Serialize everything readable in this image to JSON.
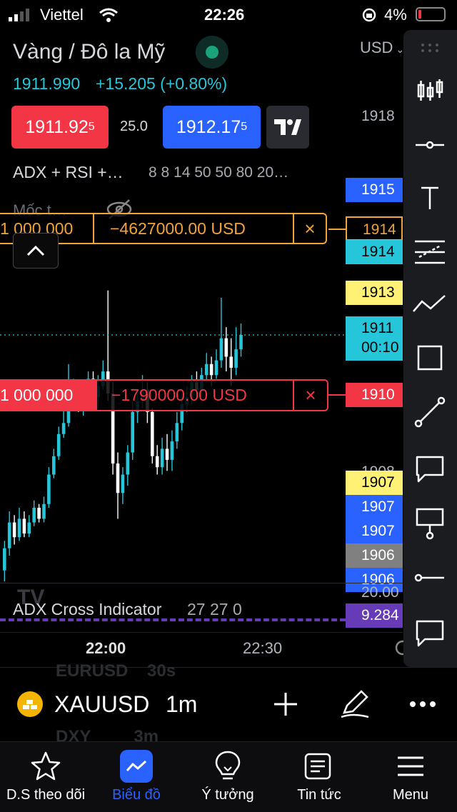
{
  "status": {
    "carrier": "Viettel",
    "time": "22:26",
    "battery": "4%"
  },
  "header": {
    "title": "Vàng / Đô la Mỹ",
    "price": "1911.990",
    "change": "+15.205 (+0.80%)",
    "sell_main": "1911.92",
    "sell_sup": "5",
    "spread": "25.0",
    "buy_main": "1912.17",
    "buy_sup": "5",
    "currency": "USD"
  },
  "indicator_row": {
    "name": "ADX + RSI +…",
    "params": "8 8 14 50 50 80 20…"
  },
  "legend": {
    "label": "Mốc t…"
  },
  "orders": [
    {
      "qty": "1 000 000",
      "pnl": "−4627000.00 USD",
      "close": "×",
      "color": "#f2a33a"
    },
    {
      "qty": "1 000 000",
      "pnl": "−1790000.00 USD",
      "close": "×",
      "color": "#f23645"
    }
  ],
  "price_tags": [
    {
      "text": "1918",
      "bg": "#000000",
      "fg": "#b2b5be"
    },
    {
      "text": "1915",
      "bg": "#2962ff",
      "fg": "#ffffff"
    },
    {
      "text": "1914",
      "bg": "#000000",
      "fg": "#f2a33a"
    },
    {
      "text": "1914",
      "bg": "#26c6da",
      "fg": "#000000"
    },
    {
      "text": "1913",
      "bg": "#fff176",
      "fg": "#000000"
    },
    {
      "text": "1911",
      "bg": "#26c6da",
      "fg": "#000000",
      "sub": "00:10"
    },
    {
      "text": "1910",
      "bg": "#f23645",
      "fg": "#ffffff"
    },
    {
      "text": "1908",
      "bg": "#000000",
      "fg": "#b2b5be"
    },
    {
      "text": "1907",
      "bg": "#fff176",
      "fg": "#000000"
    },
    {
      "text": "1907",
      "bg": "#2962ff",
      "fg": "#ffffff"
    },
    {
      "text": "1907",
      "bg": "#2962ff",
      "fg": "#ffffff"
    },
    {
      "text": "1906",
      "bg": "#808080",
      "fg": "#ffffff"
    },
    {
      "text": "1906",
      "bg": "#2962ff",
      "fg": "#ffffff"
    }
  ],
  "sub_indicator": {
    "name": "ADX Cross Indicator",
    "params": "27 27 0",
    "axis_top": "20.00",
    "value": "9.284"
  },
  "time_axis": {
    "t1": "22:00",
    "t2": "22:30"
  },
  "symbol_bar": {
    "symbol": "XAUUSD",
    "interval": "1m",
    "ghost_sym1": "EURUSD",
    "ghost_int1": "30s",
    "ghost_sym2": "DXY",
    "ghost_int2": "3m"
  },
  "nav": [
    {
      "label": "D.S theo dõi",
      "icon": "star-icon",
      "active": false
    },
    {
      "label": "Biểu đồ",
      "icon": "chart-icon",
      "active": true
    },
    {
      "label": "Ý tưởng",
      "icon": "lightbulb-icon",
      "active": false
    },
    {
      "label": "Tin tức",
      "icon": "news-icon",
      "active": false
    },
    {
      "label": "Menu",
      "icon": "menu-icon",
      "active": false
    }
  ],
  "colors": {
    "up": "#26c6da",
    "down": "#ffffff",
    "accent": "#2962ff",
    "sell": "#f23645",
    "arrow": "#f23645"
  },
  "toolbar": [
    "drag-handle-icon",
    "candles-icon",
    "horizontal-line-icon",
    "text-icon",
    "fib-icon",
    "path-icon",
    "rectangle-icon",
    "trendline-icon",
    "callout-icon",
    "flag-note-icon",
    "horizontal-ray-icon",
    "comment-icon"
  ]
}
